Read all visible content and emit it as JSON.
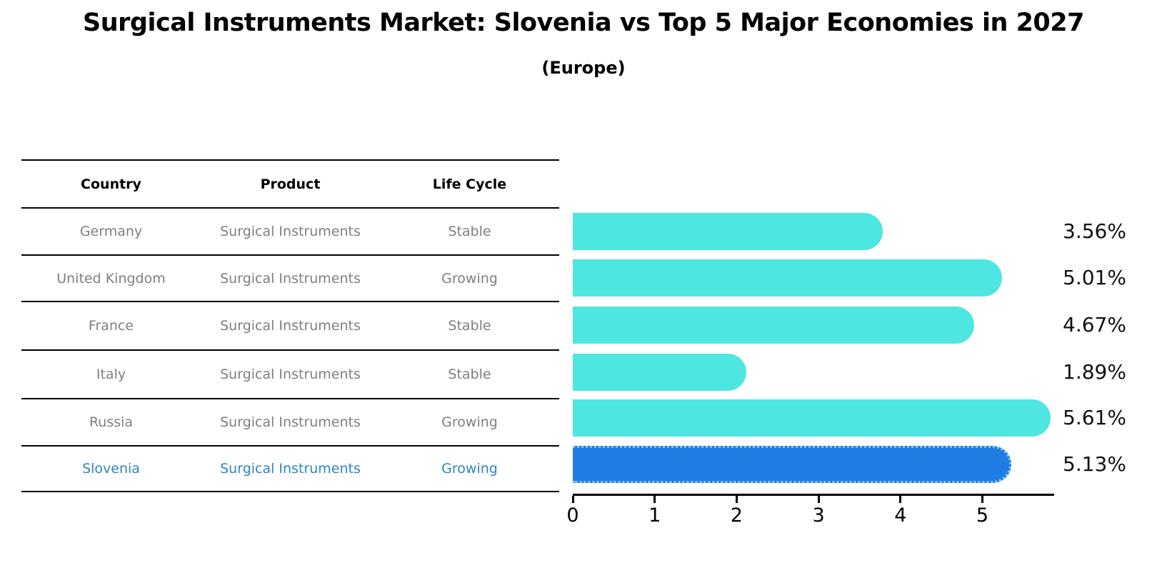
{
  "header": {
    "title": "Surgical Instruments Market: Slovenia vs Top 5 Major Economies in 2027",
    "subtitle": "(Europe)"
  },
  "table": {
    "columns": [
      "Country",
      "Product",
      "Life Cycle"
    ],
    "rows": [
      {
        "country": "Germany",
        "product": "Surgical Instruments",
        "life_cycle": "Stable",
        "highlight": false
      },
      {
        "country": "United Kingdom",
        "product": "Surgical Instruments",
        "life_cycle": "Growing",
        "highlight": false
      },
      {
        "country": "France",
        "product": "Surgical Instruments",
        "life_cycle": "Stable",
        "highlight": false
      },
      {
        "country": "Italy",
        "product": "Surgical Instruments",
        "life_cycle": "Stable",
        "highlight": false
      },
      {
        "country": "Russia",
        "product": "Surgical Instruments",
        "life_cycle": "Growing",
        "highlight": false
      },
      {
        "country": "Slovenia",
        "product": "Surgical Instruments",
        "life_cycle": "Growing",
        "highlight": true
      }
    ]
  },
  "chart_data": {
    "type": "bar",
    "orientation": "horizontal",
    "title": "Surgical Instruments Market: Slovenia vs Top 5 Major Economies in 2027 (Europe)",
    "categories": [
      "Germany",
      "United Kingdom",
      "France",
      "Italy",
      "Russia",
      "Slovenia"
    ],
    "values": [
      3.56,
      5.01,
      4.67,
      1.89,
      5.61,
      5.13
    ],
    "value_labels": [
      "3.56%",
      "5.01%",
      "4.67%",
      "1.89%",
      "5.61%",
      "5.13%"
    ],
    "unit": "percent",
    "highlight_index": 5,
    "xticks": [
      "0",
      "1",
      "2",
      "3",
      "4",
      "5"
    ],
    "xlim": [
      0,
      5.87
    ],
    "grid": false,
    "legend": false
  },
  "colors": {
    "bar_cyan": "#4DE6E1",
    "bar_blue": "#1E7CE2",
    "bar_blue_border": "#7fc7f4",
    "text_gray": "#7f7f7f",
    "text_blue": "#2e86c1",
    "axis": "#000000"
  }
}
